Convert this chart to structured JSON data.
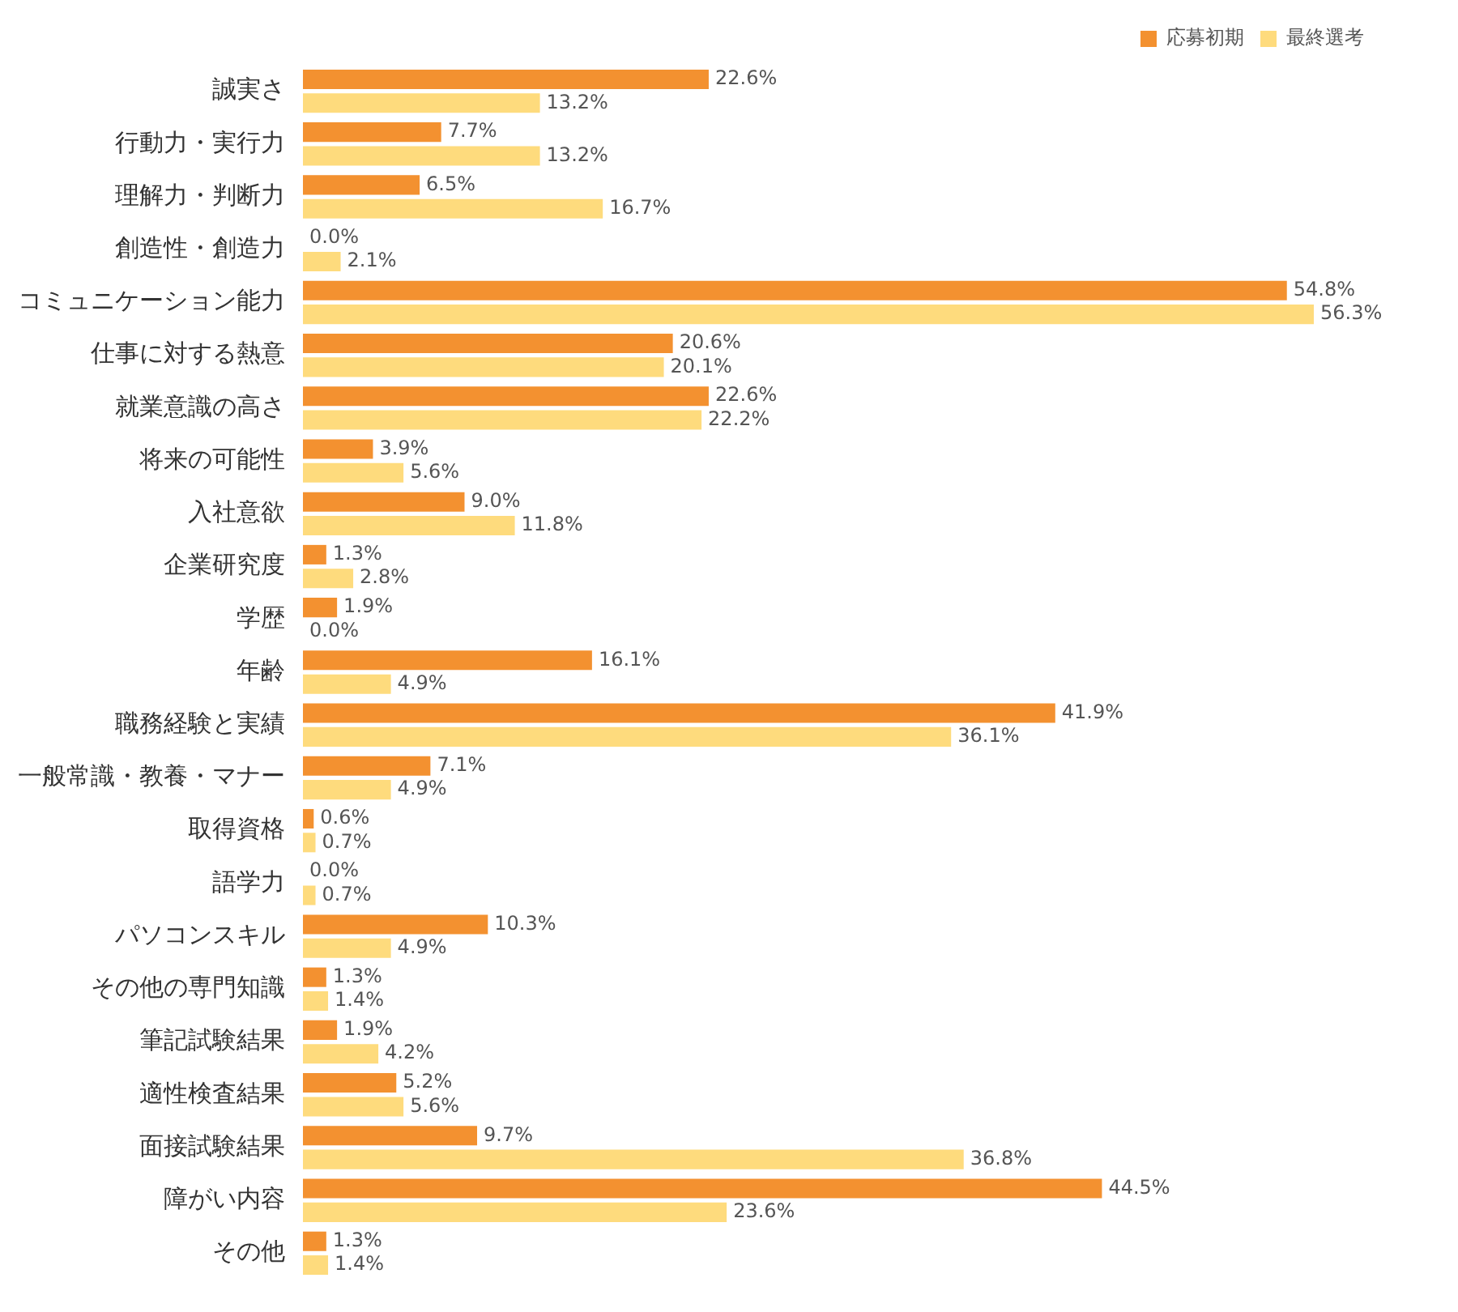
{
  "chart_data": {
    "type": "bar",
    "orientation": "horizontal",
    "legend": "top right",
    "grid": false,
    "tick_labels": "y",
    "categories": [
      "誠実さ",
      "行動力・実行力",
      "理解力・判断力",
      "創造性・創造力",
      "コミュニケーション能力",
      "仕事に対する熱意",
      "就業意識の高さ",
      "将来の可能性",
      "入社意欲",
      "企業研究度",
      "学歴",
      "年齢",
      "職務経験と実績",
      "一般常識・教養・マナー",
      "取得資格",
      "語学力",
      "パソコンスキル",
      "その他の専門知識",
      "筆記試験結果",
      "適性検査結果",
      "面接試験結果",
      "障がい内容",
      "その他"
    ],
    "series": [
      {
        "name": "応募初期",
        "color": "#f39130",
        "values": [
          22.6,
          7.7,
          6.5,
          0.0,
          54.8,
          20.6,
          22.6,
          3.9,
          9.0,
          1.3,
          1.9,
          16.1,
          41.9,
          7.1,
          0.6,
          0.0,
          10.3,
          1.3,
          1.9,
          5.2,
          9.7,
          44.5,
          1.3
        ],
        "value_labels": [
          "22.6%",
          "7.7%",
          "6.5%",
          "0.0%",
          "54.8%",
          "20.6%",
          "22.6%",
          "3.9%",
          "9.0%",
          "1.3%",
          "1.9%",
          "16.1%",
          "41.9%",
          "7.1%",
          "0.6%",
          "0.0%",
          "10.3%",
          "1.3%",
          "1.9%",
          "5.2%",
          "9.7%",
          "44.5%",
          "1.3%"
        ]
      },
      {
        "name": "最終選考",
        "color": "#fedb7d",
        "values": [
          13.2,
          13.2,
          16.7,
          2.1,
          56.3,
          20.1,
          22.2,
          5.6,
          11.8,
          2.8,
          0.0,
          4.9,
          36.1,
          4.9,
          0.7,
          0.7,
          4.9,
          1.4,
          4.2,
          5.6,
          36.8,
          23.6,
          1.4
        ],
        "value_labels": [
          "13.2%",
          "13.2%",
          "16.7%",
          "2.1%",
          "56.3%",
          "20.1%",
          "22.2%",
          "5.6%",
          "11.8%",
          "2.8%",
          "0.0%",
          "4.9%",
          "36.1%",
          "4.9%",
          "0.7%",
          "0.7%",
          "4.9%",
          "1.4%",
          "4.2%",
          "5.6%",
          "36.8%",
          "23.6%",
          "1.4%"
        ]
      }
    ]
  }
}
